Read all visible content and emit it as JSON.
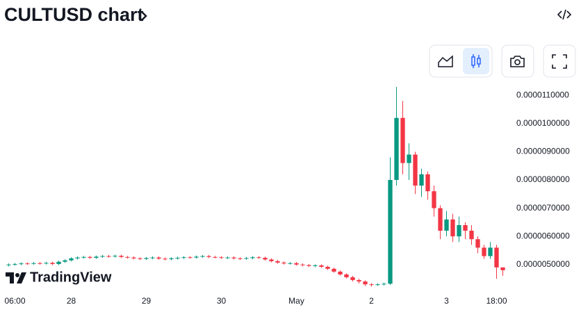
{
  "chart_data": {
    "type": "candlestick",
    "title": "CULTUSD chart",
    "brand": "TradingView",
    "categories": [
      null,
      "06:00",
      null,
      null,
      null,
      null,
      null,
      null,
      null,
      null,
      "28",
      null,
      null,
      null,
      null,
      null,
      null,
      null,
      null,
      null,
      null,
      null,
      "29",
      null,
      null,
      null,
      null,
      null,
      null,
      null,
      null,
      null,
      null,
      null,
      "30",
      null,
      null,
      null,
      null,
      null,
      null,
      null,
      null,
      null,
      null,
      null,
      "May",
      null,
      null,
      null,
      null,
      null,
      null,
      null,
      null,
      null,
      null,
      null,
      "2",
      null,
      null,
      null,
      null,
      null,
      null,
      null,
      null,
      null,
      null,
      null,
      "3",
      null,
      null,
      null,
      null,
      null,
      null,
      null,
      "18:00",
      null
    ],
    "open": [
      4.98e-06,
      5e-06,
      5.02e-06,
      5.04e-06,
      5.03e-06,
      5.05e-06,
      5.04e-06,
      5.06e-06,
      5.02e-06,
      5.1e-06,
      5.15e-06,
      5.22e-06,
      5.25e-06,
      5.27e-06,
      5.24e-06,
      5.28e-06,
      5.3e-06,
      5.29e-06,
      5.31e-06,
      5.27e-06,
      5.25e-06,
      5.22e-06,
      5.2e-06,
      5.23e-06,
      5.25e-06,
      5.21e-06,
      5.19e-06,
      5.22e-06,
      5.24e-06,
      5.26e-06,
      5.25e-06,
      5.28e-06,
      5.3e-06,
      5.27e-06,
      5.26e-06,
      5.24e-06,
      5.25e-06,
      5.22e-06,
      5.21e-06,
      5.23e-06,
      5.26e-06,
      5.24e-06,
      5.18e-06,
      5.12e-06,
      5.07e-06,
      5.04e-06,
      5.05e-06,
      5e-06,
      4.98e-06,
      4.95e-06,
      4.97e-06,
      4.92e-06,
      4.85e-06,
      4.75e-06,
      4.65e-06,
      4.55e-06,
      4.45e-06,
      4.4e-06,
      4.3e-06,
      4.28e-06,
      4.3e-06,
      4.32e-06,
      8e-06,
      1.02e-05,
      8.6e-06,
      8.9e-06,
      7.8e-06,
      8.2e-06,
      7.6e-06,
      7e-06,
      6.2e-06,
      6.6e-06,
      6e-06,
      6.4e-06,
      6.2e-06,
      5.9e-06,
      5.6e-06,
      5.3e-06,
      5.6e-06,
      4.9e-06
    ],
    "high": [
      5.04e-06,
      5.06e-06,
      5.08e-06,
      5.08e-06,
      5.09e-06,
      5.09e-06,
      5.1e-06,
      5.1e-06,
      5.14e-06,
      5.19e-06,
      5.26e-06,
      5.29e-06,
      5.31e-06,
      5.31e-06,
      5.32e-06,
      5.34e-06,
      5.34e-06,
      5.35e-06,
      5.35e-06,
      5.31e-06,
      5.29e-06,
      5.26e-06,
      5.27e-06,
      5.29e-06,
      5.29e-06,
      5.25e-06,
      5.26e-06,
      5.28e-06,
      5.3e-06,
      5.3e-06,
      5.32e-06,
      5.34e-06,
      5.34e-06,
      5.31e-06,
      5.3e-06,
      5.29e-06,
      5.29e-06,
      5.26e-06,
      5.27e-06,
      5.3e-06,
      5.3e-06,
      5.28e-06,
      5.22e-06,
      5.16e-06,
      5.11e-06,
      5.09e-06,
      5.09e-06,
      5.04e-06,
      5.02e-06,
      5.01e-06,
      5.01e-06,
      4.96e-06,
      4.89e-06,
      4.79e-06,
      4.69e-06,
      4.6e-06,
      4.5e-06,
      4.44e-06,
      4.34e-06,
      4.34e-06,
      4.36e-06,
      8.8e-06,
      1.13e-05,
      1.08e-05,
      9.3e-06,
      9e-06,
      8.4e-06,
      8.3e-06,
      7.8e-06,
      7.1e-06,
      6.9e-06,
      6.8e-06,
      6.7e-06,
      6.5e-06,
      6.4e-06,
      6e-06,
      5.7e-06,
      5.8e-06,
      5.7e-06,
      4.9e-06
    ],
    "low": [
      4.94e-06,
      4.96e-06,
      4.98e-06,
      4.99e-06,
      4.99e-06,
      5e-06,
      5e-06,
      4.98e-06,
      4.98e-06,
      5.06e-06,
      5.11e-06,
      5.18e-06,
      5.21e-06,
      5.2e-06,
      5.2e-06,
      5.24e-06,
      5.25e-06,
      5.25e-06,
      5.23e-06,
      5.21e-06,
      5.18e-06,
      5.16e-06,
      5.16e-06,
      5.19e-06,
      5.17e-06,
      5.15e-06,
      5.15e-06,
      5.18e-06,
      5.2e-06,
      5.21e-06,
      5.21e-06,
      5.24e-06,
      5.23e-06,
      5.22e-06,
      5.2e-06,
      5.2e-06,
      5.18e-06,
      5.17e-06,
      5.17e-06,
      5.19e-06,
      5.2e-06,
      5.14e-06,
      5.08e-06,
      5.03e-06,
      5e-06,
      5e-06,
      4.96e-06,
      4.94e-06,
      4.91e-06,
      4.91e-06,
      4.88e-06,
      4.81e-06,
      4.71e-06,
      4.61e-06,
      4.51e-06,
      4.4e-06,
      4.33e-06,
      4.24e-06,
      4.22e-06,
      4.24e-06,
      4.26e-06,
      4.28e-06,
      7.8e-06,
      8.2e-06,
      8e-06,
      7.5e-06,
      7.4e-06,
      7.3e-06,
      6.7e-06,
      5.9e-06,
      6e-06,
      5.8e-06,
      5.8e-06,
      5.9e-06,
      5.7e-06,
      5.4e-06,
      5.2e-06,
      5.2e-06,
      4.5e-06,
      4.6e-06
    ],
    "close": [
      5e-06,
      5.02e-06,
      5.04e-06,
      5.03e-06,
      5.05e-06,
      5.04e-06,
      5.06e-06,
      5.02e-06,
      5.1e-06,
      5.15e-06,
      5.22e-06,
      5.25e-06,
      5.27e-06,
      5.24e-06,
      5.28e-06,
      5.3e-06,
      5.29e-06,
      5.31e-06,
      5.27e-06,
      5.25e-06,
      5.22e-06,
      5.2e-06,
      5.23e-06,
      5.25e-06,
      5.21e-06,
      5.19e-06,
      5.22e-06,
      5.24e-06,
      5.26e-06,
      5.25e-06,
      5.28e-06,
      5.3e-06,
      5.27e-06,
      5.26e-06,
      5.24e-06,
      5.25e-06,
      5.22e-06,
      5.21e-06,
      5.23e-06,
      5.26e-06,
      5.24e-06,
      5.18e-06,
      5.12e-06,
      5.07e-06,
      5.04e-06,
      5.05e-06,
      5e-06,
      4.98e-06,
      4.95e-06,
      4.97e-06,
      4.92e-06,
      4.85e-06,
      4.75e-06,
      4.65e-06,
      4.55e-06,
      4.45e-06,
      4.4e-06,
      4.3e-06,
      4.28e-06,
      4.3e-06,
      4.32e-06,
      8e-06,
      1.02e-05,
      8.6e-06,
      8.9e-06,
      7.8e-06,
      8.2e-06,
      7.6e-06,
      7e-06,
      6.2e-06,
      6.6e-06,
      6e-06,
      6.4e-06,
      6.2e-06,
      5.9e-06,
      5.6e-06,
      5.3e-06,
      5.6e-06,
      4.9e-06,
      4.8e-06
    ],
    "up_color": "#089981",
    "down_color": "#f23645",
    "ylim": [
      4.157e-06,
      1.135e-05
    ],
    "yticks": [
      {
        "value": 5e-06,
        "label": "0.0000050000"
      },
      {
        "value": 6e-06,
        "label": "0.0000060000"
      },
      {
        "value": 7e-06,
        "label": "0.0000070000"
      },
      {
        "value": 8e-06,
        "label": "0.0000080000"
      },
      {
        "value": 9e-06,
        "label": "0.0000090000"
      },
      {
        "value": 1e-05,
        "label": "0.0000100000"
      },
      {
        "value": 1.1e-05,
        "label": "0.0000110000"
      }
    ]
  }
}
